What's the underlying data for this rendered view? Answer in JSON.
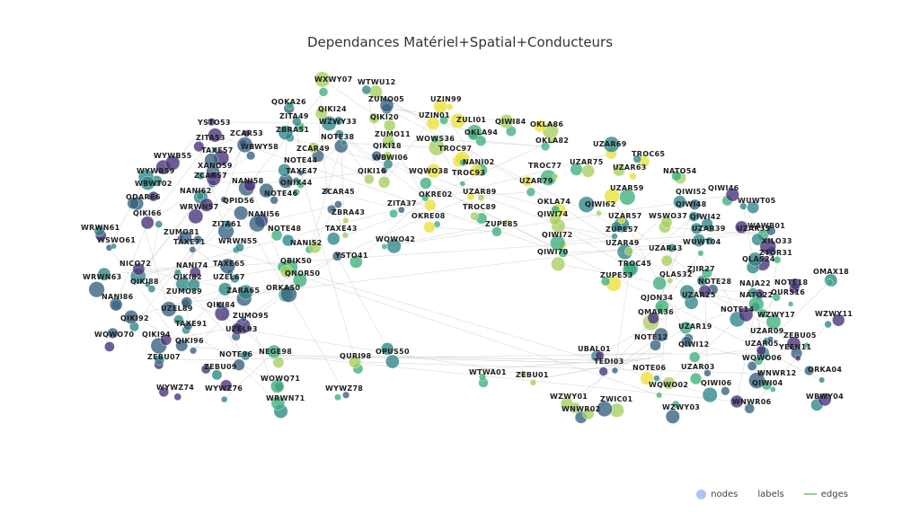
{
  "title": "Dependances Matériel+Spatial+Conducteurs",
  "legend": {
    "nodes": "nodes",
    "labels": "labels",
    "edges": "edges"
  },
  "colors": {
    "edge": "#cccccc",
    "node_stroke": "#ffffff",
    "palette": [
      "#46307a",
      "#35607f",
      "#2e8787",
      "#3eb07c",
      "#a6d05f",
      "#e9e23a"
    ],
    "legend_nodes": "#a9c7ee",
    "legend_edges": "#8fd18f"
  },
  "labels": [
    "WXWY07",
    "WTWU12",
    "ZUMO05",
    "UZIN99",
    "QOKA26",
    "QIKI24",
    "ZITA49",
    "WZWY33",
    "QIKI20",
    "UZIN01",
    "ZULI01",
    "QIWI84",
    "OKLA86",
    "YSTO53",
    "ZBRA51",
    "ZCAR53",
    "NOTE38",
    "ZUMO11",
    "WOWS36",
    "OKLA94",
    "ZITA53",
    "WBWY58",
    "ZCAR49",
    "QIKI18",
    "TROC97",
    "NANI02",
    "OKLA82",
    "UZAR69",
    "TAXE57",
    "TAXE47",
    "NOTE44",
    "WBWI06",
    "TROC65",
    "WYWB55",
    "XANO59",
    "TROC93",
    "TROC77",
    "UZAR75",
    "UZAR63",
    "WYWB59",
    "ZCAR57",
    "QIKI16",
    "WQWO38",
    "NATO54",
    "WBWT02",
    "NANI58",
    "ONIX44",
    "UZAR89",
    "UZAR79",
    "UZAR59",
    "QIWI46",
    "NANI62",
    "QPID56",
    "NOTE46",
    "ZCAR45",
    "OKRE02",
    "OKLA74",
    "QIWI62",
    "QIWI52",
    "WUWT05",
    "ODAR66",
    "WRWN57",
    "ZBRA43",
    "ZITA37",
    "TROC89",
    "QIWI74",
    "UZAR57",
    "WSWO37",
    "QIWI48",
    "QIKI66",
    "NANI56",
    "OKRE08",
    "ZUPE85",
    "QIWI42",
    "WAWB01",
    "WRWN61",
    "ZITA61",
    "NOTE48",
    "TAXE43",
    "ZUPE57",
    "UZAR39",
    "UZAR33",
    "ZUMO81",
    "WQWO42",
    "QIWI72",
    "WUWT04",
    "XILO33",
    "WSWO61",
    "TAXE71",
    "WRWN55",
    "NANI52",
    "UZAR49",
    "UZAR43",
    "ZTOR31",
    "YSTO41",
    "QIWI70",
    "TROC45",
    "QLAS24",
    "QBIK50",
    "ZJIR27",
    "OMAX18",
    "NICO72",
    "NANI74",
    "TAXE65",
    "QNOR50",
    "ZUPE53",
    "QLAS32",
    "NOTE18",
    "WRWN63",
    "QIKI88",
    "QIKI82",
    "UZEL67",
    "NOTE28",
    "NAJA22",
    "ZUMO89",
    "ZARA65",
    "ORKA50",
    "QJON34",
    "UZAR25",
    "NATO22",
    "OURS16",
    "NANI86",
    "QIKI84",
    "UZEL89",
    "NOTE14",
    "QMAR36",
    "WZWY17",
    "WZWY11",
    "QIKI92",
    "TAXE91",
    "ZUMO95",
    "UZAR19",
    "UZEL93",
    "UZAR09",
    "WQWO70",
    "QIKI94",
    "NOTE12",
    "ZEBU05",
    "QIKI96",
    "UBAL01",
    "QIWI12",
    "UZAR05",
    "YEEN11",
    "NEGE98",
    "OPUS50",
    "NOTE96",
    "QURI98",
    "ZEBU07",
    "TEDI03",
    "WQWO06",
    "ZEBU09",
    "WTWA01",
    "NOTE06",
    "UZAR03",
    "ORKA04",
    "WNWR12",
    "ZEBU01",
    "WOWQ71",
    "QIWI06",
    "QIWI04",
    "WYWZ74",
    "WYWZ76",
    "WQWO02",
    "WYWZ78",
    "WZWY01",
    "ZWIC01",
    "WBWY04",
    "WRWN71",
    "WNWR06",
    "WNWR02",
    "WZWY03"
  ]
}
